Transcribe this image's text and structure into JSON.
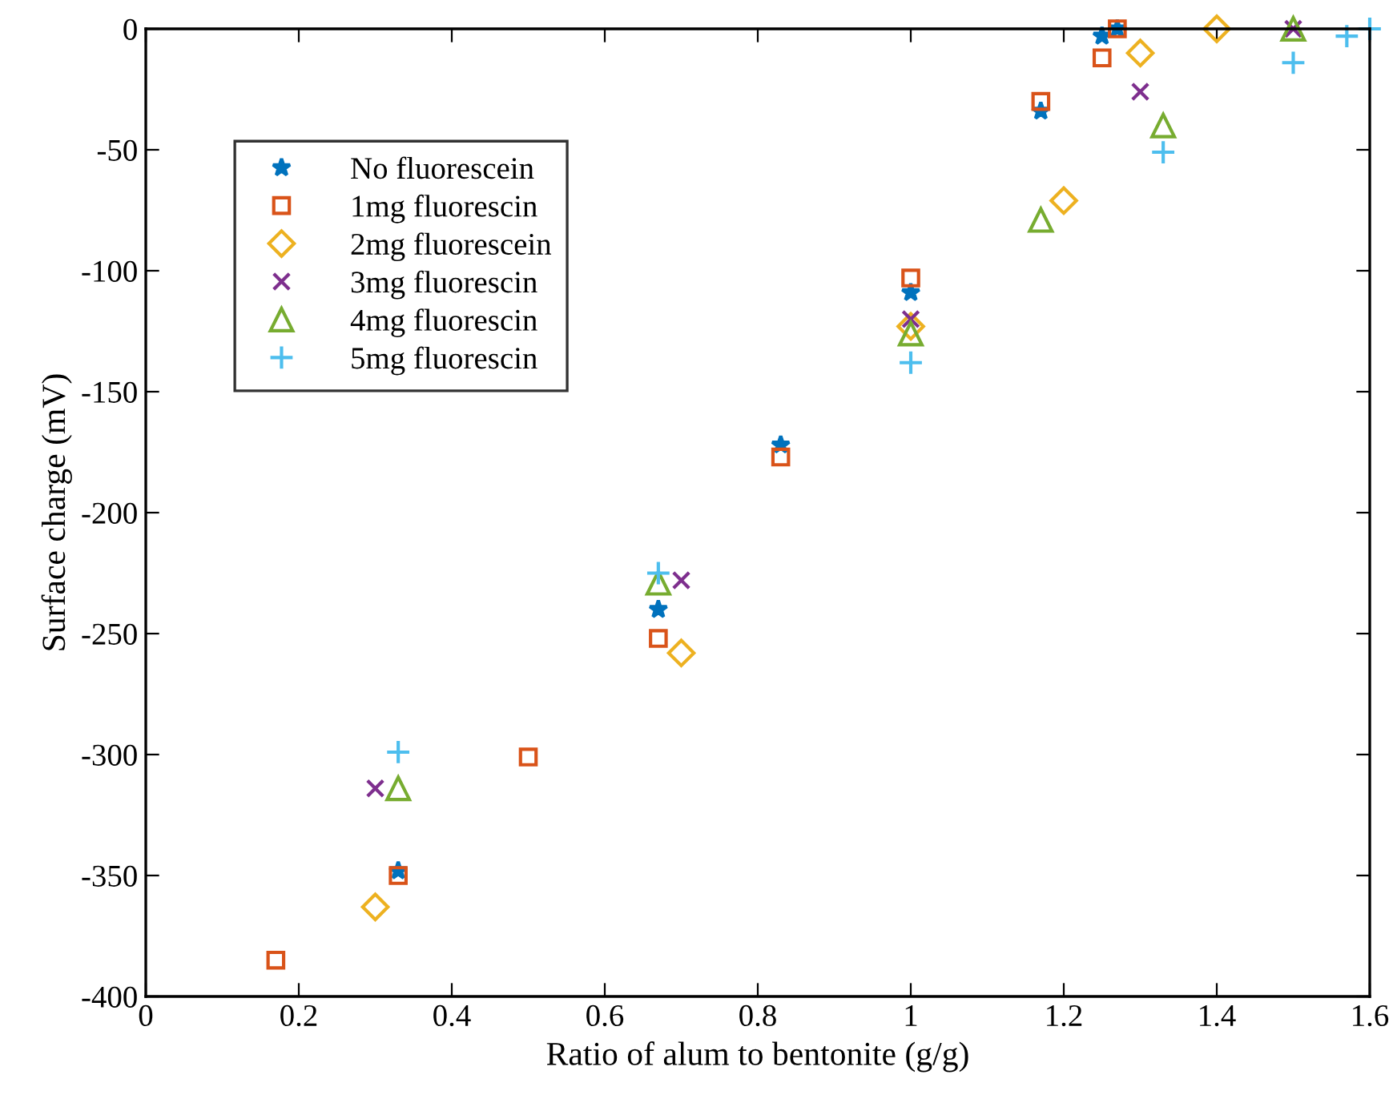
{
  "chart_data": {
    "type": "scatter",
    "xlabel": "Ratio of alum to bentonite (g/g)",
    "ylabel": "Surface charge (mV)",
    "xlim": [
      0,
      1.6
    ],
    "xticks": [
      0,
      0.2,
      0.4,
      0.6,
      0.8,
      1,
      1.2,
      1.4,
      1.6
    ],
    "ylim": [
      -400,
      0
    ],
    "yticks": [
      -400,
      -350,
      -300,
      -250,
      -200,
      -150,
      -100,
      -50,
      0
    ],
    "grid": false,
    "legend": "top left",
    "series": [
      {
        "name": "No fluorescein",
        "color": "#0072bd",
        "marker": "star",
        "x": [
          0.33,
          0.67,
          0.83,
          1.0,
          1.17,
          1.25,
          1.27
        ],
        "values": [
          -348,
          -240,
          -172,
          -109,
          -34,
          -3,
          0
        ]
      },
      {
        "name": "1mg fluorescin",
        "color": "#d95319",
        "marker": "square",
        "x": [
          0.17,
          0.33,
          0.5,
          0.67,
          0.83,
          1.0,
          1.17,
          1.25,
          1.27
        ],
        "values": [
          -385,
          -350,
          -301,
          -252,
          -177,
          -103,
          -30,
          -12,
          0
        ]
      },
      {
        "name": "2mg fluorescein",
        "color": "#edb120",
        "marker": "diamond",
        "x": [
          0.3,
          0.7,
          1.0,
          1.2,
          1.3,
          1.4
        ],
        "values": [
          -363,
          -258,
          -123,
          -71,
          -10,
          0
        ]
      },
      {
        "name": "3mg fluorescin",
        "color": "#7e2f8e",
        "marker": "cross",
        "x": [
          0.3,
          0.7,
          1.0,
          1.3,
          1.5
        ],
        "values": [
          -314,
          -228,
          -120,
          -26,
          0
        ]
      },
      {
        "name": "4mg fluorescin",
        "color": "#77ac30",
        "marker": "triangle",
        "x": [
          0.33,
          0.67,
          1.0,
          1.17,
          1.33,
          1.5
        ],
        "values": [
          -314,
          -229,
          -126,
          -79,
          -40,
          0
        ]
      },
      {
        "name": "5mg fluorescin",
        "color": "#4dbeee",
        "marker": "plus",
        "x": [
          0.33,
          0.67,
          1.0,
          1.33,
          1.5,
          1.57,
          1.6
        ],
        "values": [
          -299,
          -225,
          -138,
          -51,
          -14,
          -3,
          0
        ]
      }
    ]
  }
}
